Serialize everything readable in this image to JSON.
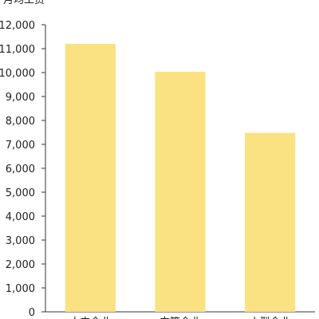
{
  "chart_data": {
    "type": "bar",
    "title": "月均工资",
    "categories": [
      "大中企业",
      "中等企业",
      "小型企业"
    ],
    "values": [
      11200,
      10030,
      7480
    ],
    "color": "#fae182",
    "ylim": [
      0,
      12000
    ],
    "yticks": [
      0,
      {
        "value": 1000,
        "label": "1,000"
      },
      {
        "value": 2000,
        "label": "2,000"
      },
      {
        "value": 3000,
        "label": "3,000"
      },
      {
        "value": 4000,
        "label": "4,000"
      },
      {
        "value": 5000,
        "label": "5,000"
      },
      {
        "value": 6000,
        "label": "6,000"
      },
      {
        "value": 7000,
        "label": "7,000"
      },
      {
        "value": 8000,
        "label": "8,000"
      },
      {
        "value": 9000,
        "label": "9,000"
      },
      {
        "value": 10000,
        "label": "10,000"
      },
      {
        "value": 11000,
        "label": "11,000"
      },
      {
        "value": 12000,
        "label": "12,000"
      }
    ],
    "grid": false
  }
}
